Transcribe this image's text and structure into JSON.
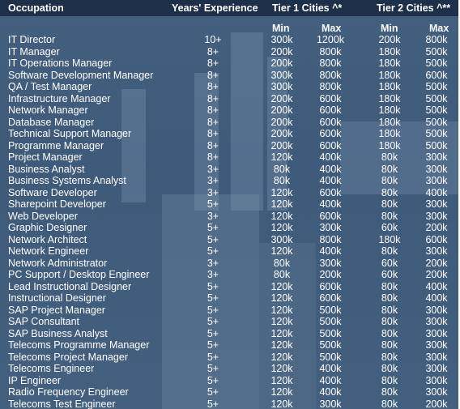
{
  "header": {
    "occupation": "Occupation",
    "years": "Years' Experience",
    "tier1": "Tier 1 Cities ^*",
    "tier2": "Tier 2 Cities ^**",
    "t1_min": "Min",
    "t1_max": "Max",
    "t2_min": "Min",
    "t2_max": "Max"
  },
  "rows": [
    [
      "IT Director",
      "10+",
      "300k",
      "1200k",
      "200k",
      "800k"
    ],
    [
      "IT Manager",
      "8+",
      "200k",
      "800k",
      "180k",
      "500k"
    ],
    [
      "IT Operations Manager",
      "8+",
      "200k",
      "800k",
      "180k",
      "500k"
    ],
    [
      "Software Development Manager",
      "8+",
      "300k",
      "800k",
      "180k",
      "600k"
    ],
    [
      "QA / Test Manager",
      "8+",
      "300k",
      "800k",
      "180k",
      "500k"
    ],
    [
      "Infrastructure Manager",
      "8+",
      "200k",
      "600k",
      "180k",
      "500k"
    ],
    [
      "Network Manager",
      "8+",
      "200k",
      "600k",
      "180k",
      "500k"
    ],
    [
      "Database Manager",
      "8+",
      "200k",
      "600k",
      "180k",
      "500k"
    ],
    [
      "Technical Support Manager",
      "8+",
      "200k",
      "600k",
      "180k",
      "500k"
    ],
    [
      "Programme Manager",
      "8+",
      "200k",
      "600k",
      "180k",
      "500k"
    ],
    [
      "Project Manager",
      "8+",
      "120k",
      "400k",
      "80k",
      "300k"
    ],
    [
      "Business Analyst",
      "3+",
      "80k",
      "400k",
      "80k",
      "300k"
    ],
    [
      "Business Systems Analyst",
      "3+",
      "80k",
      "400k",
      "80k",
      "300k"
    ],
    [
      "Software Developer",
      "3+",
      "120k",
      "600k",
      "80k",
      "400k"
    ],
    [
      "Sharepoint Developer",
      "5+",
      "120k",
      "400k",
      "80k",
      "300k"
    ],
    [
      "Web Developer",
      "3+",
      "120k",
      "600k",
      "80k",
      "300k"
    ],
    [
      "Graphic Designer",
      "5+",
      "120k",
      "300k",
      "60k",
      "200k"
    ],
    [
      "Network Architect",
      "5+",
      "300k",
      "800k",
      "180k",
      "600k"
    ],
    [
      "Network Engineer",
      "5+",
      "120k",
      "400k",
      "80k",
      "300k"
    ],
    [
      "Network Administrator",
      "3+",
      "80k",
      "300k",
      "60k",
      "200k"
    ],
    [
      "PC Support / Desktop Engineer",
      "3+",
      "80k",
      "200k",
      "60k",
      "200k"
    ],
    [
      "Lead Instructional Designer",
      "5+",
      "120k",
      "600k",
      "80k",
      "400k"
    ],
    [
      "Instructional Designer",
      "5+",
      "120k",
      "600k",
      "80k",
      "400k"
    ],
    [
      "SAP Project Manager",
      "5+",
      "120k",
      "500k",
      "80k",
      "300k"
    ],
    [
      "SAP Consultant",
      "5+",
      "120k",
      "500k",
      "80k",
      "300k"
    ],
    [
      "SAP Business Analyst",
      "5+",
      "120k",
      "500k",
      "80k",
      "300k"
    ],
    [
      "Telecoms Programme Manager",
      "5+",
      "120k",
      "500k",
      "80k",
      "300k"
    ],
    [
      "Telecoms Project Manager",
      "5+",
      "120k",
      "500k",
      "80k",
      "300k"
    ],
    [
      "Telecoms Engineer",
      "5+",
      "120k",
      "400k",
      "80k",
      "300k"
    ],
    [
      "IP Engineer",
      "5+",
      "120k",
      "400k",
      "80k",
      "300k"
    ],
    [
      "Radio Frequency Engineer",
      "5+",
      "120k",
      "400k",
      "80k",
      "300k"
    ],
    [
      "Telecoms Test Engineer",
      "5+",
      "120k",
      "300k",
      "80k",
      "200k"
    ]
  ]
}
